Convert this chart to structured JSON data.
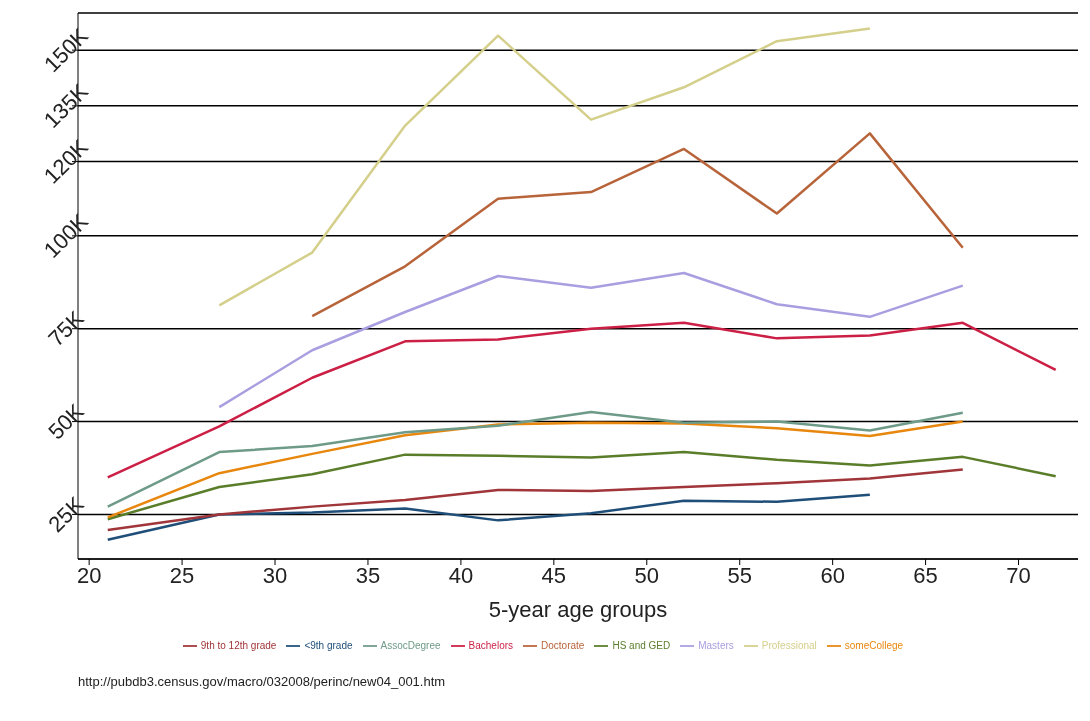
{
  "chart_data": {
    "type": "line",
    "xlabel": "5-year age groups",
    "x": [
      21,
      27,
      32,
      37,
      42,
      47,
      52,
      57,
      62,
      67,
      72
    ],
    "xlim": [
      19.4,
      73.2
    ],
    "xticks": [
      20,
      25,
      30,
      35,
      40,
      45,
      50,
      55,
      60,
      65,
      70
    ],
    "ylim": [
      13,
      160
    ],
    "yticks": [
      {
        "value": 25,
        "label": "25K"
      },
      {
        "value": 50,
        "label": "50K"
      },
      {
        "value": 75,
        "label": "75K"
      },
      {
        "value": 100,
        "label": "100K"
      },
      {
        "value": 120,
        "label": "120K"
      },
      {
        "value": 135,
        "label": "135K"
      },
      {
        "value": 150,
        "label": "150K"
      }
    ],
    "grid": "y",
    "legend": "bottom",
    "marker": "none",
    "line_style": "solid",
    "series": [
      {
        "name": "<9th grade",
        "color": "#1f4e79",
        "values": [
          18.2,
          25,
          25.5,
          26.6,
          23.4,
          25.3,
          28.7,
          28.4,
          30.3,
          null,
          null
        ]
      },
      {
        "name": "9th to 12th grade",
        "color": "#a0353a",
        "values": [
          20.8,
          25,
          27.1,
          28.9,
          31.6,
          31.3,
          32.4,
          33.4,
          34.7,
          37.1,
          null
        ]
      },
      {
        "name": "HS and GED",
        "color": "#5a7d2a",
        "values": [
          23.7,
          32.4,
          35.8,
          41.1,
          40.8,
          40.3,
          41.8,
          39.7,
          38.2,
          40.5,
          35.3
        ]
      },
      {
        "name": "someCollege",
        "color": "#e8870e",
        "values": [
          24.2,
          36.1,
          41.3,
          46.3,
          49.2,
          49.7,
          49.5,
          48.2,
          46.1,
          50,
          null
        ]
      },
      {
        "name": "AssocDegree",
        "color": "#6e9a88",
        "values": [
          27.1,
          41.8,
          43.4,
          47.1,
          48.9,
          52.6,
          49.7,
          50,
          47.6,
          52.4,
          null
        ]
      },
      {
        "name": "Bachelors",
        "color": "#cc1f45",
        "values": [
          35,
          48.7,
          61.8,
          71.6,
          72.1,
          75,
          76.6,
          72.4,
          73.2,
          76.6,
          63.9
        ]
      },
      {
        "name": "Masters",
        "color": "#a99ee0",
        "values": [
          null,
          53.9,
          69.2,
          79.5,
          89.2,
          86,
          90,
          81.6,
          78.2,
          86.6,
          null
        ]
      },
      {
        "name": "Doctorate",
        "color": "#b8643a",
        "values": [
          null,
          null,
          78.4,
          91.8,
          110,
          111.8,
          123.4,
          106,
          127.6,
          96.8,
          null
        ]
      },
      {
        "name": "Professional",
        "color": "#d4cf8a",
        "values": [
          null,
          81.3,
          95.5,
          129.7,
          153.9,
          131.3,
          140,
          152.4,
          155.8,
          null,
          null
        ]
      }
    ],
    "annotations": [
      "http://pubdb3.census.gov/macro/032008/perinc/new04_001.htm"
    ]
  }
}
